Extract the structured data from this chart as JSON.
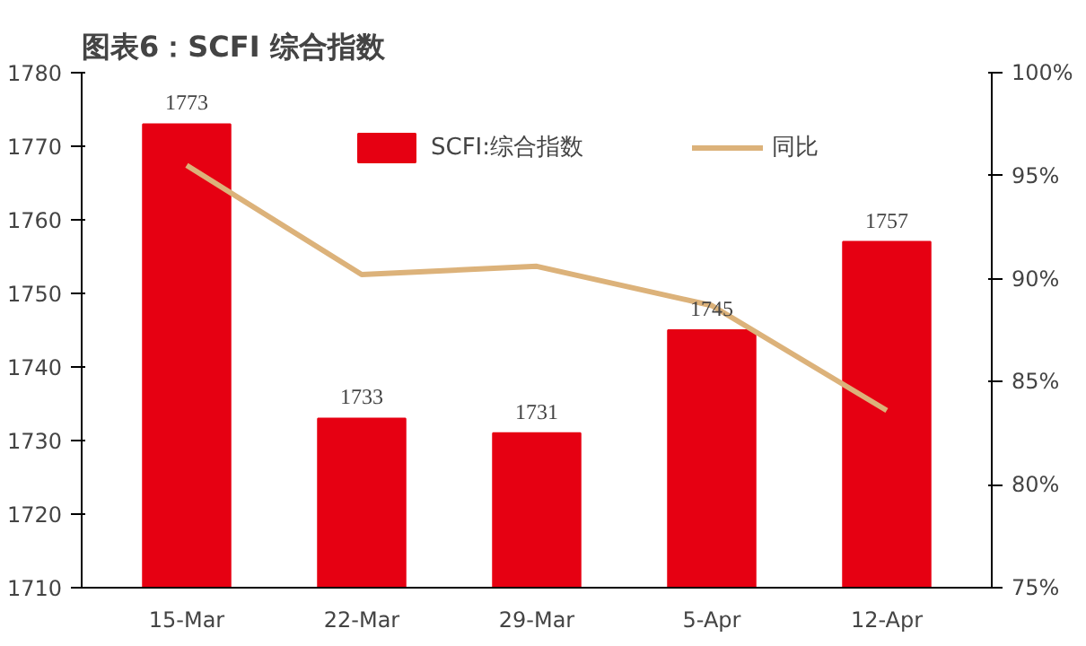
{
  "chart_data": {
    "type": "bar",
    "title": "图表6：SCFI 综合指数",
    "categories": [
      "15-Mar",
      "22-Mar",
      "29-Mar",
      "5-Apr",
      "12-Apr"
    ],
    "series": [
      {
        "name": "SCFI:综合指数",
        "color": "#e60012",
        "values": [
          1773,
          1733,
          1731,
          1745,
          1757
        ]
      },
      {
        "name": "同比",
        "type": "line",
        "axis": "y2",
        "color": "#dcb27a",
        "values": [
          95.5,
          90.2,
          90.6,
          88.7,
          83.6
        ]
      }
    ],
    "ylim": [
      1710,
      1780
    ],
    "yticks": [
      1710,
      1720,
      1730,
      1740,
      1750,
      1760,
      1770,
      1780
    ],
    "y2lim": [
      75,
      100
    ],
    "y2ticks": [
      {
        "value": 75,
        "label": "75%"
      },
      {
        "value": 80,
        "label": "80%"
      },
      {
        "value": 85,
        "label": "85%"
      },
      {
        "value": 90,
        "label": "90%"
      },
      {
        "value": 95,
        "label": "95%"
      },
      {
        "value": 100,
        "label": "100%"
      }
    ],
    "value_labels": [
      "1773",
      "1733",
      "1731",
      "1745",
      "1757"
    ],
    "legend": "top",
    "grid": false
  }
}
